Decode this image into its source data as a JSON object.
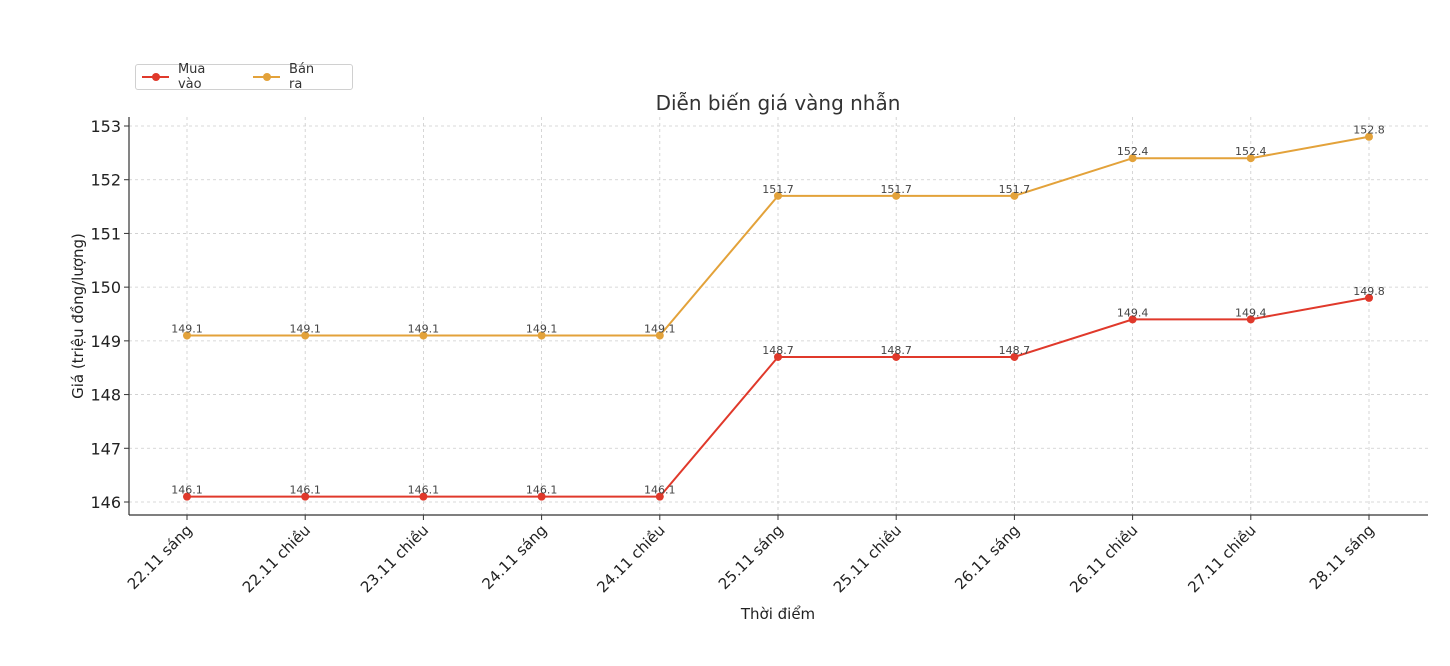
{
  "chart_data": {
    "type": "line",
    "title": "Diễn biến giá vàng nhẫn",
    "xlabel": "Thời điểm",
    "ylabel": "Giá (triệu đồng/lượng)",
    "categories": [
      "22.11 sáng",
      "22.11 chiều",
      "23.11 chiều",
      "24.11 sáng",
      "24.11 chiều",
      "25.11 sáng",
      "25.11 chiều",
      "26.11 sáng",
      "26.11 chiều",
      "27.11 chiều",
      "28.11 sáng"
    ],
    "series": [
      {
        "name": "Mua vào",
        "color": "#e0392b",
        "values": [
          146.1,
          146.1,
          146.1,
          146.1,
          146.1,
          148.7,
          148.7,
          148.7,
          149.4,
          149.4,
          149.8
        ]
      },
      {
        "name": "Bán ra",
        "color": "#e3a23a",
        "values": [
          149.1,
          149.1,
          149.1,
          149.1,
          149.1,
          151.7,
          151.7,
          151.7,
          152.4,
          152.4,
          152.8
        ]
      }
    ],
    "yticks": [
      146,
      147,
      148,
      149,
      150,
      151,
      152,
      153
    ],
    "ylim": [
      145.75,
      153.1
    ],
    "grid": true,
    "grid_style": "dashed",
    "legend_position": "upper left (outside, above plot)",
    "data_labels": true
  },
  "legend": {
    "items": [
      {
        "label": "Mua vào",
        "color": "#e0392b"
      },
      {
        "label": "Bán ra",
        "color": "#e3a23a"
      }
    ]
  }
}
